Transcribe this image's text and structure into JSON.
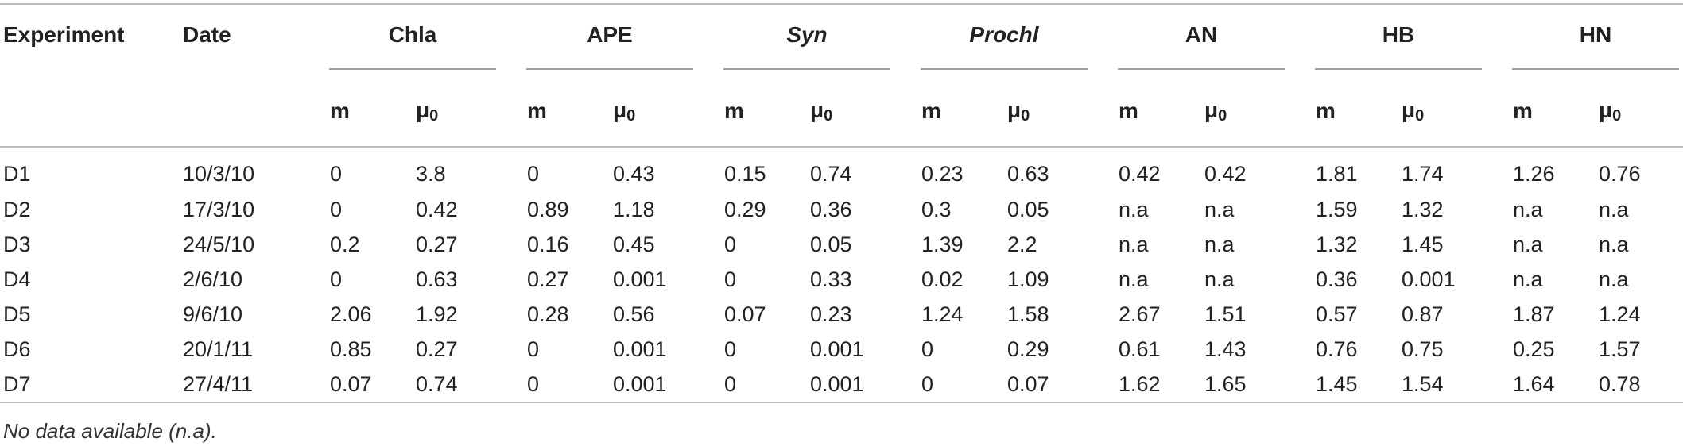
{
  "table": {
    "header": {
      "experiment": "Experiment",
      "date": "Date",
      "groups": [
        {
          "label": "Chla",
          "italic": false
        },
        {
          "label": "APE",
          "italic": false
        },
        {
          "label": "Syn",
          "italic": true
        },
        {
          "label": "Prochl",
          "italic": true
        },
        {
          "label": "AN",
          "italic": false
        },
        {
          "label": "HB",
          "italic": false
        },
        {
          "label": "HN",
          "italic": false
        }
      ],
      "sub_m": "m",
      "sub_mu": "μ",
      "sub_mu_index": "0"
    },
    "rows": [
      {
        "experiment": "D1",
        "date": "10/3/10",
        "values": [
          "0",
          "3.8",
          "0",
          "0.43",
          "0.15",
          "0.74",
          "0.23",
          "0.63",
          "0.42",
          "0.42",
          "1.81",
          "1.74",
          "1.26",
          "0.76"
        ]
      },
      {
        "experiment": "D2",
        "date": "17/3/10",
        "values": [
          "0",
          "0.42",
          "0.89",
          "1.18",
          "0.29",
          "0.36",
          "0.3",
          "0.05",
          "n.a",
          "n.a",
          "1.59",
          "1.32",
          "n.a",
          "n.a"
        ]
      },
      {
        "experiment": "D3",
        "date": "24/5/10",
        "values": [
          "0.2",
          "0.27",
          "0.16",
          "0.45",
          "0",
          "0.05",
          "1.39",
          "2.2",
          "n.a",
          "n.a",
          "1.32",
          "1.45",
          "n.a",
          "n.a"
        ]
      },
      {
        "experiment": "D4",
        "date": "2/6/10",
        "values": [
          "0",
          "0.63",
          "0.27",
          "0.001",
          "0",
          "0.33",
          "0.02",
          "1.09",
          "n.a",
          "n.a",
          "0.36",
          "0.001",
          "n.a",
          "n.a"
        ]
      },
      {
        "experiment": "D5",
        "date": "9/6/10",
        "values": [
          "2.06",
          "1.92",
          "0.28",
          "0.56",
          "0.07",
          "0.23",
          "1.24",
          "1.58",
          "2.67",
          "1.51",
          "0.57",
          "0.87",
          "1.87",
          "1.24"
        ]
      },
      {
        "experiment": "D6",
        "date": "20/1/11",
        "values": [
          "0.85",
          "0.27",
          "0",
          "0.001",
          "0",
          "0.001",
          "0",
          "0.29",
          "0.61",
          "1.43",
          "0.76",
          "0.75",
          "0.25",
          "1.57"
        ]
      },
      {
        "experiment": "D7",
        "date": "27/4/11",
        "values": [
          "0.07",
          "0.74",
          "0",
          "0.001",
          "0",
          "0.001",
          "0",
          "0.07",
          "1.62",
          "1.65",
          "1.45",
          "1.54",
          "1.64",
          "0.78"
        ]
      }
    ],
    "footnote": "No data available (n.a)."
  }
}
